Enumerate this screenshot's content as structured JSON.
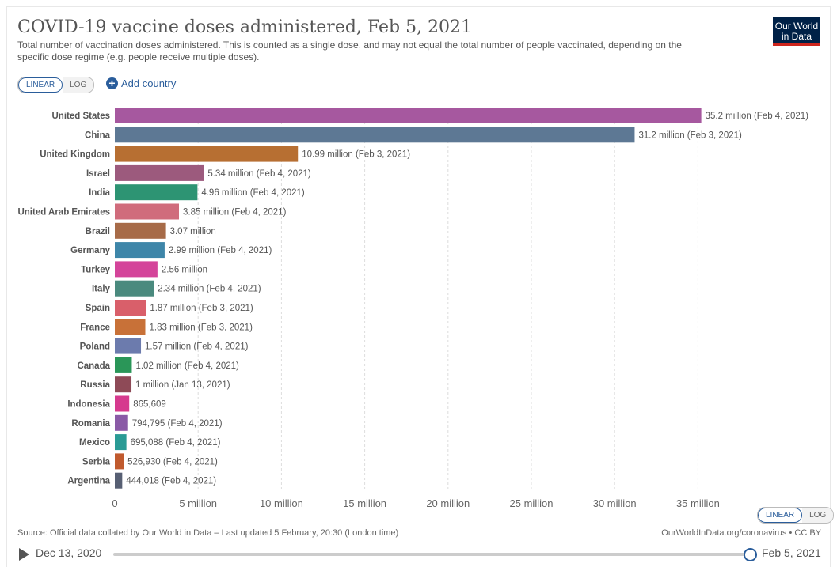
{
  "header": {
    "title": "COVID-19 vaccine doses administered, Feb 5, 2021",
    "subtitle": "Total number of vaccination doses administered. This is counted as a single dose, and may not equal the total number of people vaccinated, depending on the specific dose regime (e.g. people receive multiple doses).",
    "logo_line1": "Our World",
    "logo_line2": "in Data"
  },
  "controls": {
    "linear_label": "LINEAR",
    "log_label": "LOG",
    "add_country_label": "Add country",
    "add_icon": "plus-circle-icon"
  },
  "chart_data": {
    "type": "bar",
    "orientation": "horizontal",
    "title": "COVID-19 vaccine doses administered, Feb 5, 2021",
    "xlim": [
      0,
      37000000
    ],
    "x_ticks": [
      0,
      5000000,
      10000000,
      15000000,
      20000000,
      25000000,
      30000000,
      35000000
    ],
    "x_tick_labels": [
      "0",
      "5 million",
      "10 million",
      "15 million",
      "20 million",
      "25 million",
      "30 million",
      "35 million"
    ],
    "grid": true,
    "categories": [
      "United States",
      "China",
      "United Kingdom",
      "Israel",
      "India",
      "United Arab Emirates",
      "Brazil",
      "Germany",
      "Turkey",
      "Italy",
      "Spain",
      "France",
      "Poland",
      "Canada",
      "Russia",
      "Indonesia",
      "Romania",
      "Mexico",
      "Serbia",
      "Argentina"
    ],
    "values": [
      35200000,
      31200000,
      10990000,
      5340000,
      4960000,
      3850000,
      3070000,
      2990000,
      2560000,
      2340000,
      1870000,
      1830000,
      1570000,
      1020000,
      1000000,
      865609,
      794795,
      695088,
      526930,
      444018
    ],
    "labels": [
      "35.2 million (Feb 4, 2021)",
      "31.2 million (Feb 3, 2021)",
      "10.99 million (Feb 3, 2021)",
      "5.34 million (Feb 4, 2021)",
      "4.96 million (Feb 4, 2021)",
      "3.85 million (Feb 4, 2021)",
      "3.07 million",
      "2.99 million (Feb 4, 2021)",
      "2.56 million",
      "2.34 million (Feb 4, 2021)",
      "1.87 million (Feb 3, 2021)",
      "1.83 million (Feb 3, 2021)",
      "1.57 million (Feb 4, 2021)",
      "1.02 million (Feb 4, 2021)",
      "1 million (Jan 13, 2021)",
      "865,609",
      "794,795 (Feb 4, 2021)",
      "695,088 (Feb 4, 2021)",
      "526,930 (Feb 4, 2021)",
      "444,018 (Feb 4, 2021)"
    ],
    "colors": [
      "#a6589f",
      "#5d7894",
      "#b76f32",
      "#9c5a7d",
      "#2d9473",
      "#d06c7c",
      "#a76b48",
      "#3e86a9",
      "#d4449a",
      "#4a8a7e",
      "#d95f6a",
      "#c87138",
      "#6c7bad",
      "#2a9658",
      "#8e4a57",
      "#d63a8e",
      "#8a5aa6",
      "#2a9b95",
      "#c05a2e",
      "#575f73"
    ]
  },
  "footer": {
    "source": "Source: Official data collated by Our World in Data – Last updated 5 February, 20:30 (London time)",
    "url": "OurWorldInData.org/coronavirus • CC BY"
  },
  "timeline": {
    "start": "Dec 13, 2020",
    "end": "Feb 5, 2021",
    "position": 1.0
  }
}
